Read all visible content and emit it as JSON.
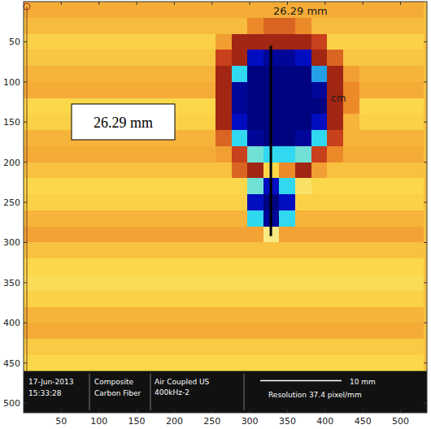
{
  "chart_data": {
    "type": "heatmap",
    "xlim": [
      0,
      535
    ],
    "ylim": [
      0,
      512
    ],
    "xticks": [
      50,
      100,
      150,
      200,
      250,
      300,
      350,
      400,
      450,
      500
    ],
    "yticks": [
      50,
      100,
      150,
      200,
      250,
      300,
      350,
      400,
      450,
      500
    ],
    "zlim": [
      0,
      1
    ],
    "cells_xlim": [
      0,
      530
    ],
    "cells_ylim": [
      0,
      460
    ],
    "cells": [
      [
        0.72,
        0.72,
        0.72,
        0.72,
        0.72,
        0.72,
        0.72,
        0.72,
        0.72,
        0.72,
        0.72,
        0.72,
        0.72,
        0.72,
        0.72,
        0.72,
        0.72,
        0.72,
        0.72,
        0.72,
        0.72,
        0.72,
        0.72,
        0.72,
        0.72
      ],
      [
        0.68,
        0.68,
        0.68,
        0.68,
        0.68,
        0.68,
        0.68,
        0.68,
        0.68,
        0.68,
        0.68,
        0.68,
        0.68,
        0.68,
        0.8,
        0.85,
        0.85,
        0.8,
        0.68,
        0.68,
        0.68,
        0.68,
        0.68,
        0.68,
        0.68
      ],
      [
        0.62,
        0.62,
        0.62,
        0.62,
        0.62,
        0.62,
        0.62,
        0.62,
        0.62,
        0.62,
        0.62,
        0.62,
        0.75,
        0.95,
        0.95,
        0.95,
        0.95,
        0.95,
        0.9,
        0.62,
        0.62,
        0.62,
        0.62,
        0.62,
        0.62
      ],
      [
        0.65,
        0.65,
        0.65,
        0.65,
        0.65,
        0.65,
        0.65,
        0.65,
        0.65,
        0.65,
        0.65,
        0.65,
        0.9,
        0.95,
        0.1,
        0.05,
        0.05,
        0.1,
        0.95,
        0.85,
        0.65,
        0.65,
        0.65,
        0.65,
        0.65
      ],
      [
        0.7,
        0.7,
        0.7,
        0.7,
        0.7,
        0.7,
        0.7,
        0.7,
        0.7,
        0.7,
        0.7,
        0.7,
        0.95,
        0.3,
        0.02,
        0.02,
        0.02,
        0.02,
        0.25,
        0.95,
        0.75,
        0.7,
        0.7,
        0.7,
        0.7
      ],
      [
        0.72,
        0.72,
        0.72,
        0.72,
        0.72,
        0.72,
        0.72,
        0.72,
        0.72,
        0.72,
        0.72,
        0.72,
        0.95,
        0.05,
        0.02,
        0.02,
        0.02,
        0.02,
        0.05,
        0.95,
        0.8,
        0.72,
        0.72,
        0.72,
        0.72
      ],
      [
        0.6,
        0.6,
        0.6,
        0.6,
        0.6,
        0.6,
        0.6,
        0.6,
        0.6,
        0.6,
        0.6,
        0.6,
        0.95,
        0.05,
        0.02,
        0.02,
        0.02,
        0.02,
        0.02,
        0.95,
        0.8,
        0.6,
        0.6,
        0.6,
        0.6
      ],
      [
        0.62,
        0.62,
        0.62,
        0.62,
        0.62,
        0.62,
        0.62,
        0.62,
        0.62,
        0.62,
        0.62,
        0.62,
        0.95,
        0.1,
        0.02,
        0.02,
        0.02,
        0.02,
        0.1,
        0.95,
        0.7,
        0.62,
        0.62,
        0.62,
        0.62
      ],
      [
        0.7,
        0.7,
        0.7,
        0.7,
        0.7,
        0.7,
        0.7,
        0.7,
        0.7,
        0.7,
        0.7,
        0.7,
        0.85,
        0.3,
        0.05,
        0.02,
        0.02,
        0.05,
        0.3,
        0.9,
        0.7,
        0.7,
        0.7,
        0.7,
        0.7
      ],
      [
        0.72,
        0.72,
        0.72,
        0.72,
        0.72,
        0.72,
        0.72,
        0.72,
        0.72,
        0.72,
        0.72,
        0.72,
        0.75,
        0.9,
        0.35,
        0.3,
        0.3,
        0.35,
        0.9,
        0.8,
        0.72,
        0.72,
        0.72,
        0.72,
        0.72
      ],
      [
        0.66,
        0.66,
        0.66,
        0.66,
        0.66,
        0.66,
        0.66,
        0.66,
        0.66,
        0.66,
        0.66,
        0.66,
        0.66,
        0.85,
        0.95,
        0.6,
        0.8,
        0.95,
        0.75,
        0.66,
        0.66,
        0.66,
        0.66,
        0.66,
        0.66
      ],
      [
        0.6,
        0.6,
        0.6,
        0.6,
        0.6,
        0.6,
        0.6,
        0.6,
        0.6,
        0.6,
        0.6,
        0.6,
        0.6,
        0.6,
        0.35,
        0.1,
        0.3,
        0.55,
        0.6,
        0.6,
        0.6,
        0.6,
        0.6,
        0.6,
        0.6
      ],
      [
        0.62,
        0.62,
        0.62,
        0.62,
        0.62,
        0.62,
        0.62,
        0.62,
        0.62,
        0.62,
        0.62,
        0.62,
        0.62,
        0.62,
        0.1,
        0.02,
        0.1,
        0.62,
        0.62,
        0.62,
        0.62,
        0.62,
        0.62,
        0.62,
        0.62
      ],
      [
        0.7,
        0.7,
        0.7,
        0.7,
        0.7,
        0.7,
        0.7,
        0.7,
        0.7,
        0.7,
        0.7,
        0.7,
        0.7,
        0.7,
        0.3,
        0.05,
        0.3,
        0.7,
        0.7,
        0.7,
        0.7,
        0.7,
        0.7,
        0.7,
        0.7
      ],
      [
        0.74,
        0.74,
        0.74,
        0.74,
        0.74,
        0.74,
        0.74,
        0.74,
        0.74,
        0.74,
        0.74,
        0.74,
        0.74,
        0.74,
        0.74,
        0.5,
        0.74,
        0.74,
        0.74,
        0.74,
        0.74,
        0.74,
        0.74,
        0.74,
        0.74
      ],
      [
        0.66,
        0.66,
        0.66,
        0.66,
        0.66,
        0.66,
        0.66,
        0.66,
        0.66,
        0.66,
        0.66,
        0.66,
        0.66,
        0.66,
        0.66,
        0.66,
        0.66,
        0.66,
        0.66,
        0.66,
        0.66,
        0.66,
        0.66,
        0.66,
        0.66
      ],
      [
        0.6,
        0.6,
        0.6,
        0.6,
        0.6,
        0.6,
        0.6,
        0.6,
        0.6,
        0.6,
        0.6,
        0.6,
        0.6,
        0.6,
        0.6,
        0.6,
        0.6,
        0.6,
        0.6,
        0.6,
        0.6,
        0.6,
        0.6,
        0.6,
        0.6
      ],
      [
        0.58,
        0.58,
        0.58,
        0.58,
        0.58,
        0.58,
        0.58,
        0.58,
        0.58,
        0.58,
        0.58,
        0.58,
        0.58,
        0.58,
        0.58,
        0.58,
        0.58,
        0.58,
        0.58,
        0.58,
        0.58,
        0.58,
        0.58,
        0.58,
        0.58
      ],
      [
        0.62,
        0.62,
        0.62,
        0.62,
        0.62,
        0.62,
        0.62,
        0.62,
        0.62,
        0.62,
        0.62,
        0.62,
        0.62,
        0.62,
        0.62,
        0.62,
        0.62,
        0.62,
        0.62,
        0.62,
        0.62,
        0.62,
        0.62,
        0.62,
        0.62
      ],
      [
        0.7,
        0.7,
        0.7,
        0.7,
        0.7,
        0.7,
        0.7,
        0.7,
        0.7,
        0.7,
        0.7,
        0.7,
        0.7,
        0.7,
        0.7,
        0.7,
        0.7,
        0.7,
        0.7,
        0.7,
        0.7,
        0.7,
        0.7,
        0.7,
        0.7
      ],
      [
        0.72,
        0.72,
        0.72,
        0.72,
        0.72,
        0.72,
        0.72,
        0.72,
        0.72,
        0.72,
        0.72,
        0.72,
        0.72,
        0.72,
        0.72,
        0.72,
        0.72,
        0.72,
        0.72,
        0.72,
        0.72,
        0.72,
        0.72,
        0.72,
        0.72
      ],
      [
        0.64,
        0.64,
        0.64,
        0.64,
        0.64,
        0.64,
        0.64,
        0.64,
        0.64,
        0.64,
        0.64,
        0.64,
        0.64,
        0.64,
        0.64,
        0.64,
        0.64,
        0.64,
        0.64,
        0.64,
        0.64,
        0.64,
        0.64,
        0.64,
        0.64
      ],
      [
        0.6,
        0.6,
        0.6,
        0.6,
        0.6,
        0.6,
        0.6,
        0.6,
        0.6,
        0.6,
        0.6,
        0.6,
        0.6,
        0.6,
        0.6,
        0.6,
        0.6,
        0.6,
        0.6,
        0.6,
        0.6,
        0.6,
        0.6,
        0.6,
        0.6
      ]
    ],
    "measurement": {
      "x": 328,
      "y": [
        55,
        292
      ],
      "label": "26.29 mm"
    },
    "annotations": [
      "26.29 mm",
      "cm"
    ],
    "info": [
      "17-Jun-2013",
      "15:33:28",
      "Composite",
      "Carbon Fiber",
      "Air Coupled US",
      "400kHz-2",
      "10 mm",
      "Resolution 37.4 pixel/mm"
    ]
  }
}
